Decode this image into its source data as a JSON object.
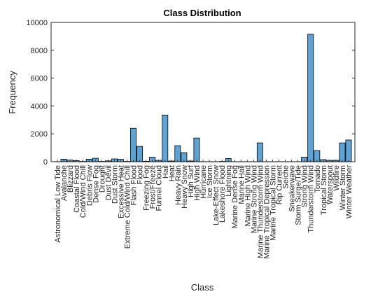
{
  "chart_data": {
    "type": "bar",
    "title": "Class Distribution",
    "xlabel": "Class",
    "ylabel": "Frequency",
    "ylim": [
      0,
      10000
    ],
    "yticks": [
      0,
      2000,
      4000,
      6000,
      8000,
      10000
    ],
    "yticks_labels": [
      "0",
      "2000",
      "4000",
      "6000",
      "8000",
      "10000"
    ],
    "grid": false,
    "bar_color": "#5ea3d6",
    "bar_edge_color": "#000000",
    "categories": [
      "Astronomical Low Tide",
      "Avalanche",
      "Blizzard",
      "Coastal Flood",
      "Cold/Wind Chill",
      "Debris Flow",
      "Dense Fog",
      "Drought",
      "Dust Devil",
      "Dust Storm",
      "Excessive Heat",
      "Extreme Cold/Wind Chill",
      "Flash Flood",
      "Flood",
      "Freezing Fog",
      "Frost/Freeze",
      "Funnel Cloud",
      "Hail",
      "Heat",
      "Heavy Rain",
      "Heavy Snow",
      "High Surf",
      "High Wind",
      "Hurricane",
      "Ice Storm",
      "Lake-Effect Snow",
      "Lakeshore Flood",
      "Lightning",
      "Marine Dense Fog",
      "Marine Hail",
      "Marine High Wind",
      "Marine Strong Wind",
      "Marine Thunderstorm Wind",
      "Marine Tropical Depression",
      "Marine Tropical Storm",
      "Rip Current",
      "Seiche",
      "Sneakerwave",
      "Storm Surge/Tide",
      "Strong Wind",
      "Thunderstorm Wind",
      "Tornado",
      "Tropical Storm",
      "Waterspout",
      "Wildfire",
      "Winter Storm",
      "Winter Weather"
    ],
    "values": [
      5,
      180,
      120,
      80,
      20,
      180,
      250,
      20,
      60,
      200,
      170,
      20,
      2400,
      1100,
      30,
      330,
      100,
      3350,
      50,
      1150,
      650,
      50,
      1700,
      5,
      5,
      5,
      20,
      230,
      5,
      5,
      5,
      5,
      1350,
      5,
      5,
      5,
      5,
      5,
      5,
      330,
      9150,
      800,
      150,
      100,
      100,
      1350,
      1560
    ]
  }
}
